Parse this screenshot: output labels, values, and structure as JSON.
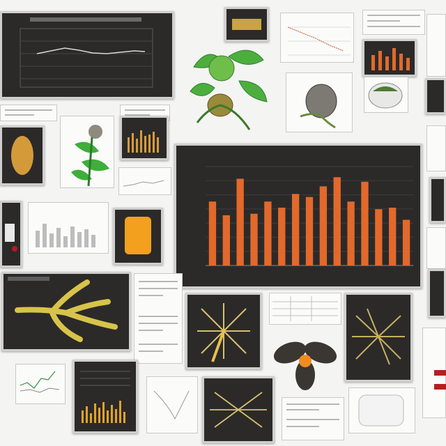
{
  "collage": {
    "description_tiles": 0
  },
  "main_chart": {
    "title": "",
    "footer": ""
  },
  "chart_data": {
    "type": "bar",
    "title": "",
    "xlabel": "",
    "ylabel": "",
    "categories": [
      "",
      "",
      "",
      "",
      "",
      "",
      "",
      "",
      "",
      "",
      "",
      "",
      "",
      "",
      "",
      ""
    ],
    "values": [
      42,
      33,
      57,
      34,
      42,
      38,
      47,
      45,
      52,
      58,
      42,
      55,
      37,
      38,
      30,
      0
    ],
    "ylim": [
      0,
      65
    ],
    "bar_color": "#e2692b",
    "grid": true
  },
  "colors": {
    "background": "#f4f4f2",
    "panel_dark": "#2b2a29",
    "accent_orange": "#e2692b",
    "leaf_green": "#4caf3d",
    "specimen_yellow": "#d9b84a"
  }
}
